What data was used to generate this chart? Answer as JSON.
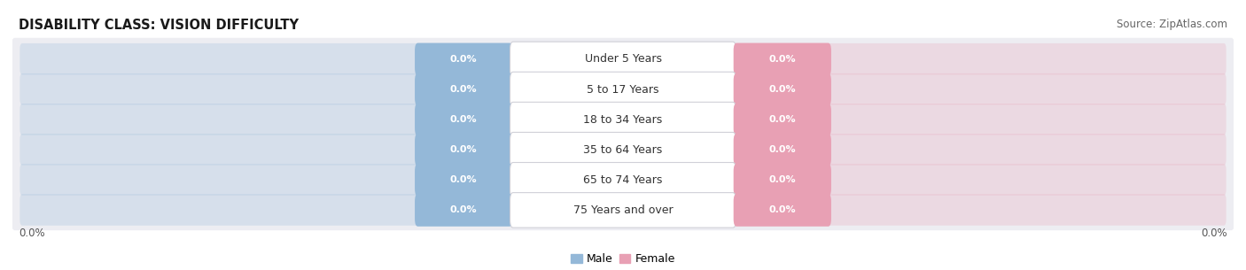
{
  "title": "DISABILITY CLASS: VISION DIFFICULTY",
  "source": "Source: ZipAtlas.com",
  "categories": [
    "Under 5 Years",
    "5 to 17 Years",
    "18 to 34 Years",
    "35 to 64 Years",
    "65 to 74 Years",
    "75 Years and over"
  ],
  "male_values": [
    0.0,
    0.0,
    0.0,
    0.0,
    0.0,
    0.0
  ],
  "female_values": [
    0.0,
    0.0,
    0.0,
    0.0,
    0.0,
    0.0
  ],
  "male_color": "#94b8d8",
  "female_color": "#e8a0b4",
  "row_bg_color": "#ededf2",
  "cat_box_color": "#ffffff",
  "title_fontsize": 10.5,
  "source_fontsize": 8.5,
  "category_fontsize": 9,
  "pill_fontsize": 8,
  "left_label": "0.0%",
  "right_label": "0.0%",
  "legend_male": "Male",
  "legend_female": "Female",
  "background_color": "#ffffff"
}
